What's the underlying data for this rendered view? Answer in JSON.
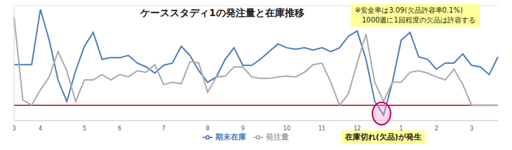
{
  "chart_data": {
    "type": "line",
    "title": "ケーススタディ1の発注量と在庫推移",
    "annotations": [
      "※安全率は3.09(欠品許容率0.1%)",
      "1000週に1回程度の欠品は許容する",
      "在庫切れ(欠品)が発生"
    ],
    "categories": [
      "3",
      null,
      null,
      "4",
      null,
      null,
      null,
      null,
      "5",
      null,
      null,
      null,
      "6",
      null,
      null,
      null,
      null,
      "7",
      null,
      null,
      null,
      null,
      "8",
      null,
      null,
      null,
      "9",
      null,
      null,
      null,
      null,
      "10",
      null,
      null,
      null,
      "11",
      null,
      null,
      null,
      "12",
      null,
      null,
      null,
      null,
      "1",
      null,
      null,
      null,
      "2",
      null,
      null,
      null,
      "3",
      null,
      null,
      null
    ],
    "series": [
      {
        "name": "期末在庫",
        "color": "#4a7ebb",
        "values": [
          53,
          53,
          53,
          125,
          85,
          33,
          5,
          45,
          77,
          95,
          60,
          62,
          62,
          65,
          55,
          50,
          42,
          52,
          55,
          77,
          65,
          45,
          30,
          37,
          60,
          75,
          52,
          52,
          60,
          70,
          80,
          75,
          73,
          75,
          72,
          75,
          70,
          75,
          90,
          97,
          60,
          5,
          -13,
          30,
          85,
          95,
          63,
          60,
          47,
          55,
          55,
          67,
          52,
          50,
          40,
          63
        ]
      },
      {
        "name": "発注量",
        "color": "#aaaaaa",
        "values": [
          115,
          7,
          0,
          20,
          37,
          70,
          45,
          5,
          33,
          33,
          40,
          33,
          40,
          37,
          45,
          43,
          53,
          27,
          30,
          28,
          57,
          55,
          17,
          37,
          38,
          50,
          50,
          37,
          35,
          35,
          37,
          38,
          37,
          43,
          53,
          55,
          30,
          0,
          15,
          55,
          93,
          30,
          5,
          30,
          30,
          43,
          45,
          42,
          37,
          33,
          47,
          27,
          0,
          0,
          0,
          0
        ]
      }
    ],
    "ylim": [
      -20,
      130
    ],
    "yticks": [
      0,
      25,
      50,
      75,
      100,
      125
    ],
    "grid": true,
    "tick_labels": "x",
    "legend": "bottom"
  }
}
